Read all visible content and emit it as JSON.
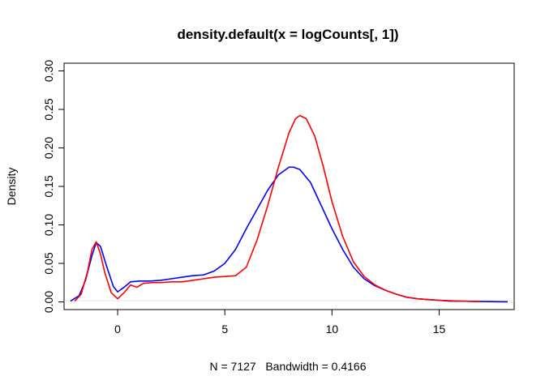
{
  "chart_data": {
    "type": "line",
    "title": "density.default(x = logCounts[, 1])",
    "xlabel": "N = 7127   Bandwidth = 0.4166",
    "ylabel": "Density",
    "xlim": [
      -2.5,
      18.5
    ],
    "ylim": [
      -0.01,
      0.31
    ],
    "x_ticks": [
      0,
      5,
      10,
      15
    ],
    "y_ticks": [
      0.0,
      0.05,
      0.1,
      0.15,
      0.2,
      0.25,
      0.3
    ],
    "x_tick_labels": [
      "0",
      "5",
      "10",
      "15"
    ],
    "y_tick_labels": [
      "0.00",
      "0.05",
      "0.10",
      "0.15",
      "0.20",
      "0.25",
      "0.30"
    ],
    "grid": false,
    "series": [
      {
        "color": "#0000ff",
        "x": [
          -2.2,
          -1.8,
          -1.5,
          -1.2,
          -1.0,
          -0.8,
          -0.5,
          -0.2,
          0.0,
          0.3,
          0.6,
          1.0,
          1.5,
          2.0,
          2.5,
          3.0,
          3.5,
          4.0,
          4.5,
          5.0,
          5.5,
          6.0,
          6.5,
          7.0,
          7.5,
          8.0,
          8.2,
          8.5,
          9.0,
          9.5,
          10.0,
          10.5,
          11.0,
          11.5,
          12.0,
          12.5,
          13.0,
          13.5,
          14.0,
          14.5,
          15.0,
          15.5,
          16.0,
          17.0,
          18.2
        ],
        "y": [
          0.001,
          0.008,
          0.028,
          0.06,
          0.077,
          0.072,
          0.045,
          0.02,
          0.013,
          0.019,
          0.026,
          0.027,
          0.027,
          0.028,
          0.03,
          0.032,
          0.034,
          0.035,
          0.04,
          0.05,
          0.068,
          0.095,
          0.12,
          0.145,
          0.165,
          0.175,
          0.175,
          0.172,
          0.155,
          0.125,
          0.095,
          0.068,
          0.045,
          0.03,
          0.021,
          0.015,
          0.01,
          0.006,
          0.004,
          0.003,
          0.002,
          0.001,
          0.001,
          0.0005,
          0.0001
        ]
      },
      {
        "color": "#ff0000",
        "x": [
          -2.0,
          -1.7,
          -1.4,
          -1.2,
          -1.0,
          -0.8,
          -0.6,
          -0.3,
          0.0,
          0.3,
          0.6,
          0.9,
          1.2,
          1.6,
          2.0,
          2.5,
          3.0,
          3.5,
          4.0,
          4.5,
          5.0,
          5.5,
          6.0,
          6.5,
          7.0,
          7.5,
          8.0,
          8.3,
          8.5,
          8.8,
          9.2,
          9.6,
          10.0,
          10.5,
          11.0,
          11.5,
          12.0,
          12.5,
          13.0,
          13.5,
          14.0,
          15.0,
          16.0,
          16.9
        ],
        "y": [
          0.001,
          0.01,
          0.04,
          0.068,
          0.078,
          0.062,
          0.038,
          0.012,
          0.004,
          0.012,
          0.022,
          0.019,
          0.024,
          0.025,
          0.025,
          0.026,
          0.026,
          0.028,
          0.03,
          0.032,
          0.033,
          0.034,
          0.045,
          0.08,
          0.125,
          0.175,
          0.22,
          0.238,
          0.242,
          0.238,
          0.215,
          0.175,
          0.13,
          0.085,
          0.052,
          0.033,
          0.022,
          0.015,
          0.01,
          0.006,
          0.004,
          0.002,
          0.001,
          0.0003
        ]
      }
    ]
  }
}
